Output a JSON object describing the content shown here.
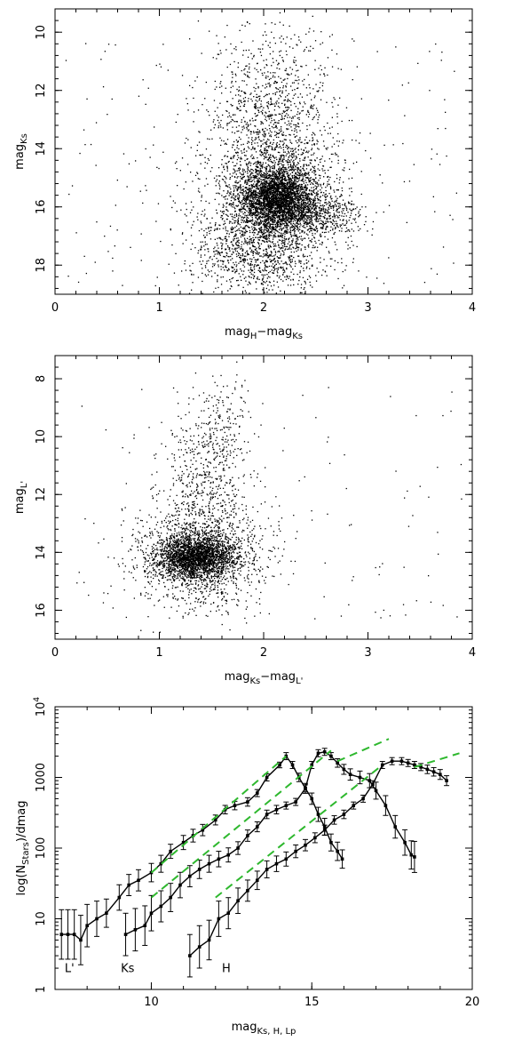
{
  "chart_data": [
    {
      "type": "scatter",
      "xlabel": {
        "base": "mag",
        "sub1": "H",
        "mid": "−mag",
        "sub2": "Ks"
      },
      "ylabel": {
        "base": "mag",
        "sub": "Ks"
      },
      "xlim": [
        0,
        4
      ],
      "ylim": [
        19,
        9.2
      ],
      "y_inverted": true,
      "xticks": [
        0,
        1,
        2,
        3,
        4
      ],
      "yticks": [
        10,
        12,
        14,
        16,
        18
      ],
      "clusters": [
        {
          "cx": 2.12,
          "cy": 15.65,
          "sx": 0.18,
          "sy": 0.5,
          "n": 2600,
          "rot": -0.35
        },
        {
          "cx": 2.1,
          "cy": 15.6,
          "sx": 0.32,
          "sy": 1.6,
          "n": 2200
        },
        {
          "cx": 2.05,
          "cy": 12.6,
          "sx": 0.28,
          "sy": 1.5,
          "n": 700
        },
        {
          "cx": 2.45,
          "cy": 16.2,
          "sx": 0.25,
          "sy": 0.35,
          "n": 600
        },
        {
          "cx": 1.9,
          "cy": 17.4,
          "sx": 0.3,
          "sy": 0.7,
          "n": 700
        }
      ],
      "background": {
        "xrange": [
          0.1,
          3.9
        ],
        "yrange": [
          10,
          18.7
        ],
        "n": 220
      }
    },
    {
      "type": "scatter",
      "xlabel": {
        "base": "mag",
        "sub1": "Ks",
        "mid": "−mag",
        "sub2": "L'"
      },
      "ylabel": {
        "base": "mag",
        "sub": "L'"
      },
      "xlim": [
        0,
        4
      ],
      "ylim": [
        17,
        7.2
      ],
      "y_inverted": true,
      "xticks": [
        0,
        1,
        2,
        3,
        4
      ],
      "yticks": [
        8,
        10,
        12,
        14,
        16
      ],
      "clusters": [
        {
          "cx": 1.35,
          "cy": 14.15,
          "sx": 0.18,
          "sy": 0.35,
          "n": 2000
        },
        {
          "cx": 1.4,
          "cy": 14.1,
          "sx": 0.3,
          "sy": 0.9,
          "n": 1500
        },
        {
          "cx": 1.45,
          "cy": 11.5,
          "sx": 0.22,
          "sy": 1.4,
          "n": 550
        },
        {
          "cx": 1.6,
          "cy": 9.5,
          "sx": 0.15,
          "sy": 0.9,
          "n": 120
        }
      ],
      "background": {
        "xrange": [
          0.2,
          3.9
        ],
        "yrange": [
          8,
          16.3
        ],
        "n": 120
      }
    },
    {
      "type": "line",
      "xlabel": {
        "base": "mag",
        "sub": "Ks, H, Lp"
      },
      "ylabel": {
        "pre": "log(N",
        "sub": "Stars",
        "post": ")/dmag"
      },
      "xlim": [
        7,
        20
      ],
      "ylim": [
        1,
        10000
      ],
      "y_scale": "log",
      "xticks": [
        10,
        15,
        20
      ],
      "yticks": [
        {
          "v": 1,
          "label": "1"
        },
        {
          "v": 10,
          "label": "10"
        },
        {
          "v": 100,
          "label": "100"
        },
        {
          "v": 1000,
          "label": "1000"
        },
        {
          "v": 10000,
          "label": "10",
          "sup": "4"
        }
      ],
      "series": [
        {
          "name": "L'",
          "label_at": [
            7.3,
            1.75
          ],
          "x": [
            7.2,
            7.4,
            7.6,
            7.8,
            8.0,
            8.3,
            8.6,
            9.0,
            9.3,
            9.6,
            10.0,
            10.3,
            10.6,
            11.0,
            11.3,
            11.6,
            12.0,
            12.3,
            12.6,
            13.0,
            13.3,
            13.6,
            14.0,
            14.2,
            14.4,
            14.6,
            14.8,
            15.0,
            15.2,
            15.4,
            15.6,
            15.8,
            15.95
          ],
          "y": [
            6,
            6,
            6,
            5,
            8,
            10,
            12,
            20,
            30,
            35,
            45,
            60,
            90,
            120,
            150,
            180,
            250,
            350,
            400,
            450,
            600,
            1000,
            1500,
            2000,
            1500,
            1000,
            700,
            500,
            300,
            200,
            120,
            90,
            70
          ],
          "err": [
            0.35,
            0.35,
            0.35,
            0.35,
            0.3,
            0.25,
            0.2,
            0.18,
            0.15,
            0.15,
            0.13,
            0.12,
            0.1,
            0.1,
            0.09,
            0.08,
            0.07,
            0.06,
            0.06,
            0.06,
            0.05,
            0.05,
            0.04,
            0.05,
            0.05,
            0.06,
            0.07,
            0.08,
            0.1,
            0.12,
            0.12,
            0.13,
            0.13
          ]
        },
        {
          "name": "Ks",
          "label_at": [
            9.05,
            1.75
          ],
          "x": [
            9.2,
            9.5,
            9.8,
            10.0,
            10.3,
            10.6,
            10.9,
            11.2,
            11.5,
            11.8,
            12.1,
            12.4,
            12.7,
            13.0,
            13.3,
            13.6,
            13.9,
            14.2,
            14.5,
            14.8,
            15.0,
            15.2,
            15.4,
            15.6,
            15.8,
            16.0,
            16.2,
            16.5,
            16.8,
            17.0,
            17.3,
            17.6,
            17.9,
            18.1,
            18.2
          ],
          "y": [
            6,
            7,
            8,
            12,
            15,
            20,
            30,
            40,
            50,
            60,
            70,
            80,
            100,
            150,
            200,
            300,
            350,
            400,
            450,
            700,
            1500,
            2200,
            2300,
            2000,
            1600,
            1300,
            1100,
            1000,
            900,
            650,
            400,
            200,
            120,
            80,
            75
          ],
          "err": [
            0.3,
            0.3,
            0.28,
            0.25,
            0.22,
            0.2,
            0.18,
            0.15,
            0.13,
            0.12,
            0.11,
            0.1,
            0.09,
            0.08,
            0.07,
            0.06,
            0.06,
            0.05,
            0.05,
            0.05,
            0.05,
            0.05,
            0.05,
            0.05,
            0.06,
            0.07,
            0.08,
            0.09,
            0.1,
            0.12,
            0.14,
            0.16,
            0.18,
            0.2,
            0.22
          ]
        },
        {
          "name": "H",
          "label_at": [
            12.2,
            1.75
          ],
          "x": [
            11.2,
            11.5,
            11.8,
            12.1,
            12.4,
            12.7,
            13.0,
            13.3,
            13.6,
            13.9,
            14.2,
            14.5,
            14.8,
            15.1,
            15.4,
            15.7,
            16.0,
            16.3,
            16.6,
            16.9,
            17.2,
            17.5,
            17.8,
            18.0,
            18.2,
            18.4,
            18.6,
            18.8,
            19.0,
            19.2
          ],
          "y": [
            3,
            4,
            5,
            10,
            12,
            18,
            25,
            35,
            50,
            60,
            70,
            90,
            110,
            140,
            180,
            250,
            300,
            400,
            500,
            800,
            1500,
            1700,
            1700,
            1600,
            1500,
            1400,
            1300,
            1200,
            1100,
            900
          ],
          "err": [
            0.3,
            0.3,
            0.28,
            0.25,
            0.22,
            0.18,
            0.15,
            0.13,
            0.12,
            0.11,
            0.1,
            0.09,
            0.08,
            0.07,
            0.07,
            0.06,
            0.06,
            0.05,
            0.05,
            0.05,
            0.05,
            0.05,
            0.05,
            0.05,
            0.05,
            0.05,
            0.06,
            0.06,
            0.07,
            0.07
          ]
        }
      ],
      "fits": [
        {
          "x": [
            10.0,
            14.2
          ],
          "y": [
            45,
            2000
          ]
        },
        {
          "x": [
            10.0,
            15.6
          ],
          "y": [
            20,
            2400
          ]
        },
        {
          "x": [
            12.0,
            17.2
          ],
          "y": [
            20,
            1500
          ]
        },
        {
          "x": [
            15.8,
            17.4
          ],
          "y": [
            1700,
            3500
          ]
        },
        {
          "x": [
            18.2,
            19.6
          ],
          "y": [
            1400,
            2200
          ]
        }
      ]
    }
  ]
}
